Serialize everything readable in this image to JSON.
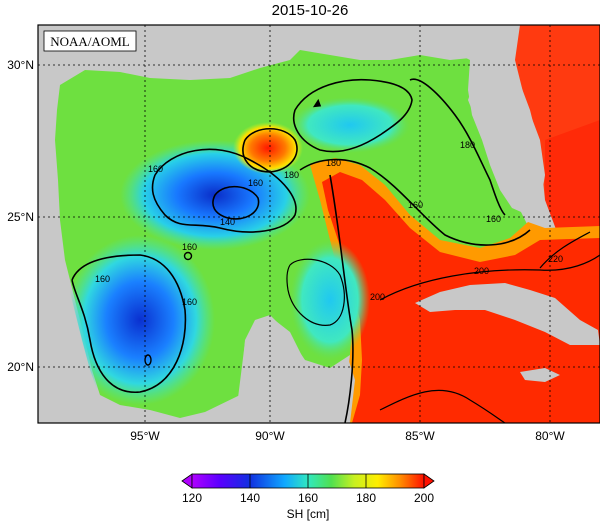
{
  "title": "2015-10-26",
  "credit": "NOAA/AOML",
  "lat_labels": [
    "30°N",
    "25°N",
    "20°N"
  ],
  "lon_labels": [
    "95°W",
    "90°W",
    "85°W",
    "80°W"
  ],
  "colorbar": {
    "ticks": [
      "120",
      "140",
      "160",
      "180",
      "200"
    ],
    "label": "SH [cm]",
    "range": [
      120,
      200
    ]
  },
  "contour_labels": [
    "160",
    "160",
    "160",
    "140",
    "180",
    "180",
    "160",
    "160",
    "180",
    "160",
    "160",
    "200",
    "220",
    "200"
  ],
  "colors": {
    "land": "#c8c8c8",
    "outside_gulf": "#ff3010",
    "low": "#0a2dc8",
    "high": "#ff2000"
  }
}
